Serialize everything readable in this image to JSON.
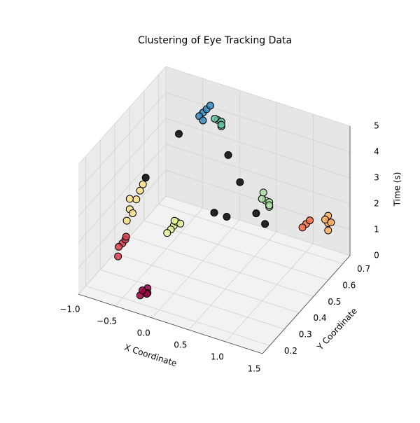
{
  "chart_data": {
    "type": "scatter3d",
    "title": "Clustering of Eye Tracking Data",
    "xlabel": "X Coordinate",
    "ylabel": "Y Coordinate",
    "zlabel": "Time (s)",
    "xlim": [
      -1,
      1.5
    ],
    "ylim": [
      0.15,
      0.75
    ],
    "zlim": [
      0,
      5
    ],
    "xticks": [
      {
        "value": -1,
        "label": "−1.0"
      },
      {
        "value": -0.5,
        "label": "−0.5"
      },
      {
        "value": 0,
        "label": "0.0"
      },
      {
        "value": 0.5,
        "label": "0.5"
      },
      {
        "value": 1,
        "label": "1.0"
      },
      1.5
    ],
    "yticks": [
      0.2,
      0.3,
      0.4,
      0.5,
      0.6,
      0.7
    ],
    "zticks": [
      0,
      1,
      2,
      3,
      4,
      5
    ],
    "grid": true,
    "series": [
      {
        "color": "#9e0142",
        "x": [
          -0.2,
          -0.18,
          -0.24,
          -0.16,
          -0.21,
          -0.19
        ],
        "y": [
          0.2,
          0.21,
          0.19,
          0.2,
          0.22,
          0.18
        ],
        "z": [
          0.5,
          0.6,
          0.4,
          0.5,
          0.3,
          0.7
        ]
      },
      {
        "color": "#d53e4f",
        "x": [
          -0.6,
          -0.58,
          -0.63,
          -0.55,
          -0.62
        ],
        "y": [
          0.25,
          0.26,
          0.24,
          0.25,
          0.23
        ],
        "z": [
          1.7,
          1.8,
          1.6,
          2.0,
          1.3
        ]
      },
      {
        "color": "#fee08b",
        "x": [
          -0.6,
          -0.58,
          -0.62,
          -0.55,
          -0.52,
          -0.6,
          -0.5
        ],
        "y": [
          0.3,
          0.31,
          0.29,
          0.32,
          0.33,
          0.3,
          0.34
        ],
        "z": [
          2.7,
          2.5,
          2.3,
          3.0,
          3.3,
          3.1,
          3.5
        ]
      },
      {
        "color": "#e6f598",
        "x": [
          -0.2,
          -0.18,
          -0.22,
          -0.15,
          -0.25,
          -0.19
        ],
        "y": [
          0.4,
          0.41,
          0.39,
          0.42,
          0.38,
          0.4
        ],
        "z": [
          1.8,
          1.9,
          1.7,
          1.8,
          1.6,
          2.0
        ]
      },
      {
        "color": "#3288bd",
        "x": [
          -0.2,
          -0.17,
          -0.23,
          -0.14,
          -0.2
        ],
        "y": [
          0.6,
          0.61,
          0.59,
          0.62,
          0.6
        ],
        "z": [
          4.9,
          5.0,
          4.8,
          5.1,
          4.6
        ]
      },
      {
        "color": "#66c2a5",
        "x": [
          0.0,
          0.03,
          -0.02,
          0.05,
          0.01
        ],
        "y": [
          0.6,
          0.61,
          0.59,
          0.6,
          0.62
        ],
        "z": [
          4.8,
          4.7,
          4.9,
          4.6,
          4.5
        ]
      },
      {
        "color": "#abdda4",
        "x": [
          0.75,
          0.78,
          0.72,
          0.8,
          0.76,
          0.7
        ],
        "y": [
          0.55,
          0.56,
          0.54,
          0.55,
          0.57,
          0.56
        ],
        "z": [
          2.7,
          2.6,
          2.8,
          2.5,
          2.4,
          2.9
        ]
      },
      {
        "color": "#f46d43",
        "x": [
          1.3,
          1.27,
          1.33
        ],
        "y": [
          0.55,
          0.54,
          0.56
        ],
        "z": [
          2.3,
          2.2,
          2.4
        ]
      },
      {
        "color": "#fdae61",
        "x": [
          1.5,
          1.48,
          1.52,
          1.46,
          1.5
        ],
        "y": [
          0.6,
          0.61,
          0.59,
          0.6,
          0.62
        ],
        "z": [
          2.2,
          2.4,
          2.0,
          2.3,
          2.1
        ]
      },
      {
        "color": "#000000",
        "x": [
          -0.23,
          -0.68,
          0.44,
          0.6,
          0.25,
          0.42,
          0.82,
          0.94
        ],
        "y": [
          0.45,
          0.45,
          0.45,
          0.45,
          0.45,
          0.45,
          0.45,
          0.45
        ],
        "z": [
          5.0,
          2.9,
          4.8,
          3.9,
          2.4,
          2.4,
          2.9,
          2.6
        ]
      }
    ]
  }
}
